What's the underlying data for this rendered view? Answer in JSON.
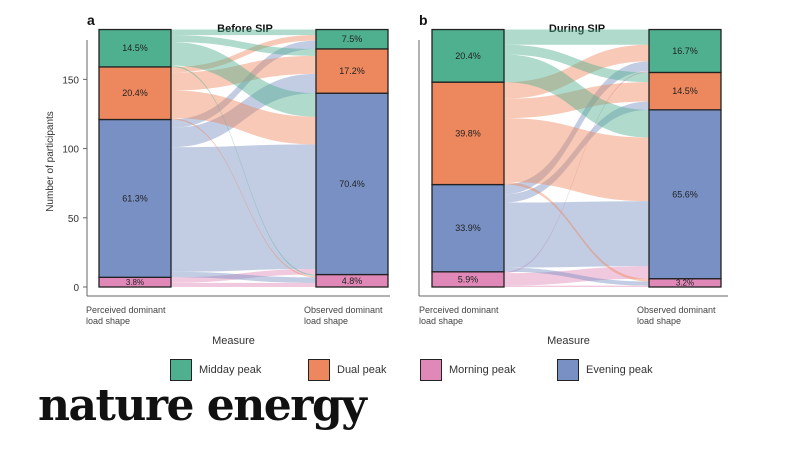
{
  "brand": {
    "logo_text": "nature energy"
  },
  "legend": [
    {
      "label": "Midday peak",
      "color": "#4fb08f"
    },
    {
      "label": "Dual peak",
      "color": "#ed875d"
    },
    {
      "label": "Morning peak",
      "color": "#e088b8"
    },
    {
      "label": "Evening peak",
      "color": "#7890c4"
    }
  ],
  "chart_data": [
    {
      "type": "alluvial",
      "panel_label": "a",
      "title": "Before SIP",
      "xlabel": "Measure",
      "ylabel": "Number of participants",
      "ylim": [
        0,
        190
      ],
      "yticks": [
        0,
        50,
        100,
        150
      ],
      "total": 186,
      "axes": [
        {
          "label": "Perceived dominant load shape",
          "segments": [
            {
              "category": "Morning peak",
              "pct_label": "3.8%",
              "value": 7
            },
            {
              "category": "Evening peak",
              "pct_label": "61.3%",
              "value": 114
            },
            {
              "category": "Dual peak",
              "pct_label": "20.4%",
              "value": 38
            },
            {
              "category": "Midday peak",
              "pct_label": "14.5%",
              "value": 27
            }
          ]
        },
        {
          "label": "Observed dominant load shape",
          "segments": [
            {
              "category": "Morning peak",
              "pct_label": "4.8%",
              "value": 9
            },
            {
              "category": "Evening peak",
              "pct_label": "70.4%",
              "value": 131
            },
            {
              "category": "Dual peak",
              "pct_label": "17.2%",
              "value": 32
            },
            {
              "category": "Midday peak",
              "pct_label": "7.5%",
              "value": 14
            }
          ]
        }
      ],
      "flows": [
        {
          "from": "Morning peak",
          "to": "Morning peak",
          "value": 3
        },
        {
          "from": "Morning peak",
          "to": "Evening peak",
          "value": 4
        },
        {
          "from": "Evening peak",
          "to": "Morning peak",
          "value": 4
        },
        {
          "from": "Evening peak",
          "to": "Evening peak",
          "value": 90
        },
        {
          "from": "Evening peak",
          "to": "Dual peak",
          "value": 14
        },
        {
          "from": "Evening peak",
          "to": "Midday peak",
          "value": 6
        },
        {
          "from": "Dual peak",
          "to": "Morning peak",
          "value": 1
        },
        {
          "from": "Dual peak",
          "to": "Evening peak",
          "value": 20
        },
        {
          "from": "Dual peak",
          "to": "Dual peak",
          "value": 13
        },
        {
          "from": "Dual peak",
          "to": "Midday peak",
          "value": 4
        },
        {
          "from": "Midday peak",
          "to": "Morning peak",
          "value": 1
        },
        {
          "from": "Midday peak",
          "to": "Evening peak",
          "value": 17
        },
        {
          "from": "Midday peak",
          "to": "Dual peak",
          "value": 5
        },
        {
          "from": "Midday peak",
          "to": "Midday peak",
          "value": 4
        }
      ]
    },
    {
      "type": "alluvial",
      "panel_label": "b",
      "title": "During SIP",
      "xlabel": "Measure",
      "ylabel": "",
      "ylim": [
        0,
        190
      ],
      "yticks": [],
      "total": 186,
      "axes": [
        {
          "label": "Perceived dominant load shape",
          "segments": [
            {
              "category": "Morning peak",
              "pct_label": "5.9%",
              "value": 11
            },
            {
              "category": "Evening peak",
              "pct_label": "33.9%",
              "value": 63
            },
            {
              "category": "Dual peak",
              "pct_label": "39.8%",
              "value": 74
            },
            {
              "category": "Midday peak",
              "pct_label": "20.4%",
              "value": 38
            }
          ]
        },
        {
          "label": "Observed dominant load shape",
          "segments": [
            {
              "category": "Morning peak",
              "pct_label": "3.2%",
              "value": 6
            },
            {
              "category": "Evening peak",
              "pct_label": "65.6%",
              "value": 122
            },
            {
              "category": "Dual peak",
              "pct_label": "14.5%",
              "value": 27
            },
            {
              "category": "Midday peak",
              "pct_label": "16.7%",
              "value": 31
            }
          ]
        }
      ],
      "flows": [
        {
          "from": "Morning peak",
          "to": "Morning peak",
          "value": 1
        },
        {
          "from": "Morning peak",
          "to": "Evening peak",
          "value": 9
        },
        {
          "from": "Morning peak",
          "to": "Midday peak",
          "value": 1
        },
        {
          "from": "Evening peak",
          "to": "Morning peak",
          "value": 3
        },
        {
          "from": "Evening peak",
          "to": "Evening peak",
          "value": 47
        },
        {
          "from": "Evening peak",
          "to": "Dual peak",
          "value": 6
        },
        {
          "from": "Evening peak",
          "to": "Midday peak",
          "value": 7
        },
        {
          "from": "Dual peak",
          "to": "Morning peak",
          "value": 2
        },
        {
          "from": "Dual peak",
          "to": "Evening peak",
          "value": 46
        },
        {
          "from": "Dual peak",
          "to": "Dual peak",
          "value": 14
        },
        {
          "from": "Dual peak",
          "to": "Midday peak",
          "value": 12
        },
        {
          "from": "Midday peak",
          "to": "Evening peak",
          "value": 20
        },
        {
          "from": "Midday peak",
          "to": "Dual peak",
          "value": 7
        },
        {
          "from": "Midday peak",
          "to": "Midday peak",
          "value": 11
        }
      ]
    }
  ]
}
